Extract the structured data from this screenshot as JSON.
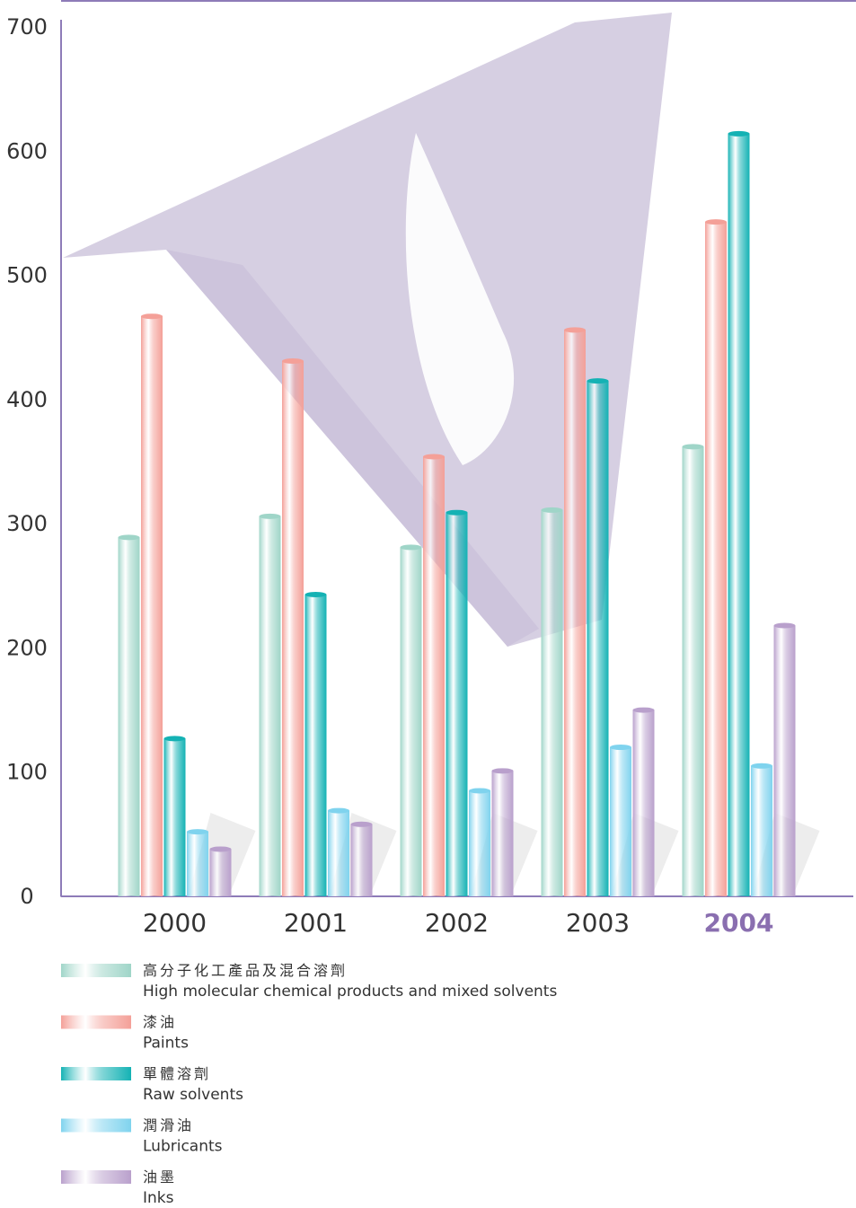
{
  "chart_data": {
    "type": "bar",
    "categories": [
      "2000",
      "2001",
      "2002",
      "2003",
      "2004"
    ],
    "series": [
      {
        "name": "High molecular chemical products and mixed solvents",
        "name_zh": "高分子化工產品及混合溶劑",
        "color": "#9fd5c8",
        "values": [
          289,
          306,
          281,
          311,
          362
        ]
      },
      {
        "name": "Paints",
        "name_zh": "漆油",
        "color": "#f4a098",
        "values": [
          467,
          431,
          354,
          456,
          543
        ]
      },
      {
        "name": "Raw solvents",
        "name_zh": "單體溶劑",
        "color": "#14b2b4",
        "values": [
          127,
          243,
          309,
          415,
          614
        ]
      },
      {
        "name": "Lubricants",
        "name_zh": "潤滑油",
        "color": "#7fd3ee",
        "values": [
          52,
          69,
          85,
          120,
          105
        ]
      },
      {
        "name": "Inks",
        "name_zh": "油墨",
        "color": "#b9a0cc",
        "values": [
          38,
          58,
          101,
          150,
          218
        ]
      }
    ],
    "ylim": [
      0,
      700
    ],
    "yticks": [
      0,
      100,
      200,
      300,
      400,
      500,
      600,
      700
    ],
    "grid": false
  }
}
